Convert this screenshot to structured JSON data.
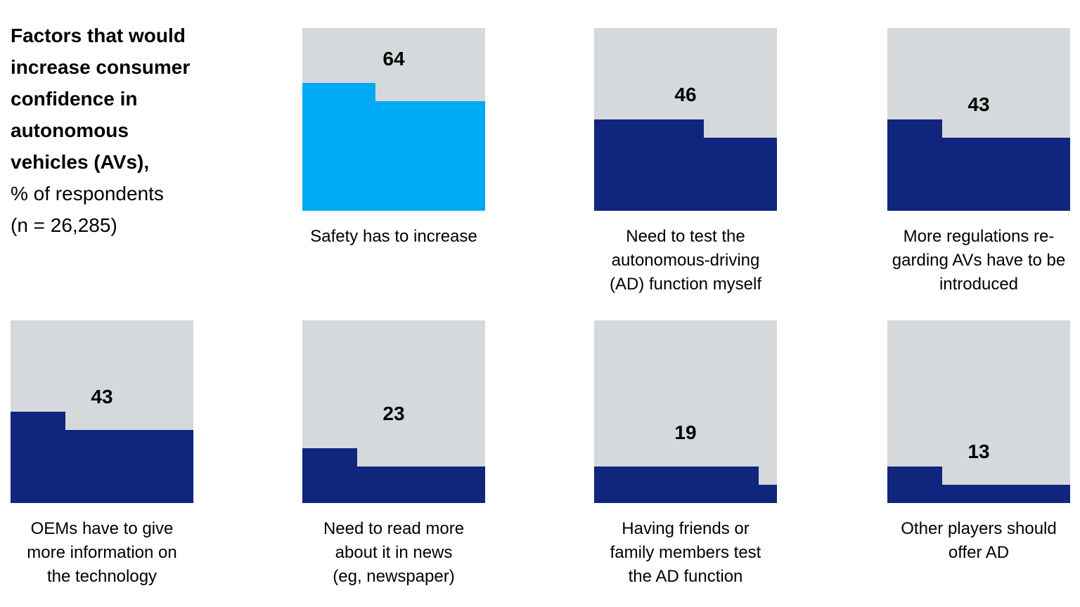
{
  "header": {
    "title_lines": [
      "Factors that would",
      "increase consumer",
      "confidence in",
      "autonomous",
      "vehicles (AVs),"
    ],
    "subtitle": "% of respondents",
    "sample": "(n = 26,285)"
  },
  "chart_data": {
    "type": "bar",
    "variant": "stepped-percentage-fill-squares",
    "title": "Factors that would increase consumer confidence in autonomous vehicles (AVs),",
    "subtitle": "% of respondents",
    "sample_size_label": "(n = 26,285)",
    "unit": "percent of respondents",
    "ylim": [
      0,
      100
    ],
    "grid": false,
    "legend": false,
    "categories": [
      "Safety has to increase",
      "Need to test the autonomous-driving (AD) function myself",
      "More regulations regarding AVs have to be introduced",
      "OEMs have to give more information on the technology",
      "Need to read more about it in news (eg, newspaper)",
      "Having friends or family members test the AD function",
      "Other players should offer AD"
    ],
    "values": [
      64,
      46,
      43,
      43,
      23,
      19,
      13
    ],
    "highlight_index": 0,
    "colors": {
      "highlight": "#00A9F4",
      "default": "#10257E",
      "empty": "#D6D9DB",
      "text": "#000000",
      "background": "#FFFFFF"
    },
    "panels": [
      {
        "value": 64,
        "highlight": true,
        "row": 0,
        "col": 1,
        "value_label_y": 44,
        "label_lines": [
          "Safety has to increase"
        ]
      },
      {
        "value": 46,
        "highlight": false,
        "row": 0,
        "col": 2,
        "value_label_y": 95,
        "label_lines": [
          "Need to test the",
          "autonomous-driving",
          "(AD) function myself"
        ]
      },
      {
        "value": 43,
        "highlight": false,
        "row": 0,
        "col": 3,
        "value_label_y": 109,
        "label_lines": [
          "More regulations re-",
          "garding AVs have to be",
          "introduced"
        ]
      },
      {
        "value": 43,
        "highlight": false,
        "row": 1,
        "col": 0,
        "value_label_y": 109,
        "label_lines": [
          "OEMs have to give",
          "more information on",
          "the technology"
        ]
      },
      {
        "value": 23,
        "highlight": false,
        "row": 1,
        "col": 1,
        "value_label_y": 133,
        "label_lines": [
          "Need to read more",
          "about it in news",
          "(eg, newspaper)"
        ]
      },
      {
        "value": 19,
        "highlight": false,
        "row": 1,
        "col": 2,
        "value_label_y": 160,
        "label_lines": [
          "Having friends or",
          "family members test",
          "the AD function"
        ]
      },
      {
        "value": 13,
        "highlight": false,
        "row": 1,
        "col": 3,
        "value_label_y": 187,
        "label_lines": [
          "Other players should",
          "offer AD"
        ]
      }
    ]
  }
}
